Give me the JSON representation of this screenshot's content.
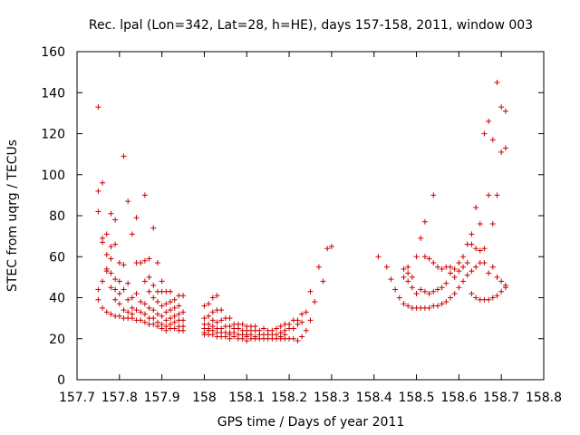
{
  "chart_data": {
    "type": "scatter",
    "title": "Rec. lpal (Lon=342, Lat=28, h=HE), days 157-158, 2011, window 003",
    "xlabel": "GPS time / Days of year 2011",
    "ylabel": "STEC from uqrg / TECUs",
    "xlim": [
      157.7,
      158.8
    ],
    "ylim": [
      0,
      160
    ],
    "xticks": [
      157.7,
      157.8,
      157.9,
      158,
      158.1,
      158.2,
      158.3,
      158.4,
      158.5,
      158.6,
      158.7,
      158.8
    ],
    "xtick_labels": [
      "157.7",
      "157.8",
      "157.9",
      "158",
      "158.1",
      "158.2",
      "158.3",
      "158.4",
      "158.5",
      "158.6",
      "158.7",
      "158.8"
    ],
    "yticks": [
      0,
      20,
      40,
      60,
      80,
      100,
      120,
      140,
      160
    ],
    "ytick_labels": [
      "0",
      "20",
      "40",
      "60",
      "80",
      "100",
      "120",
      "140",
      "160"
    ],
    "grid": false,
    "marker": "plus",
    "color": "#cc0000",
    "series": [
      {
        "points": [
          [
            157.75,
            133
          ],
          [
            157.75,
            92
          ],
          [
            157.75,
            82
          ],
          [
            157.75,
            44
          ],
          [
            157.75,
            39
          ],
          [
            157.76,
            96
          ],
          [
            157.76,
            69
          ],
          [
            157.76,
            67
          ],
          [
            157.76,
            48
          ],
          [
            157.76,
            35
          ],
          [
            157.77,
            71
          ],
          [
            157.77,
            61
          ],
          [
            157.77,
            54
          ],
          [
            157.77,
            53
          ],
          [
            157.77,
            33
          ],
          [
            157.78,
            81
          ],
          [
            157.78,
            65
          ],
          [
            157.78,
            59
          ],
          [
            157.78,
            52
          ],
          [
            157.78,
            45
          ],
          [
            157.78,
            32
          ],
          [
            157.79,
            78
          ],
          [
            157.79,
            66
          ],
          [
            157.79,
            49
          ],
          [
            157.79,
            44
          ],
          [
            157.79,
            39
          ],
          [
            157.79,
            31
          ],
          [
            157.8,
            57
          ],
          [
            157.8,
            48
          ],
          [
            157.8,
            42
          ],
          [
            157.8,
            37
          ],
          [
            157.8,
            31
          ],
          [
            157.81,
            109
          ],
          [
            157.81,
            56
          ],
          [
            157.81,
            44
          ],
          [
            157.81,
            34
          ],
          [
            157.81,
            30
          ],
          [
            157.82,
            87
          ],
          [
            157.82,
            47
          ],
          [
            157.82,
            39
          ],
          [
            157.82,
            33
          ],
          [
            157.82,
            30
          ],
          [
            157.83,
            71
          ],
          [
            157.83,
            40
          ],
          [
            157.83,
            35
          ],
          [
            157.83,
            32
          ],
          [
            157.83,
            30
          ],
          [
            157.84,
            79
          ],
          [
            157.84,
            57
          ],
          [
            157.84,
            42
          ],
          [
            157.84,
            34
          ],
          [
            157.84,
            29
          ],
          [
            157.85,
            57
          ],
          [
            157.85,
            38
          ],
          [
            157.85,
            33
          ],
          [
            157.85,
            29
          ],
          [
            157.86,
            90
          ],
          [
            157.86,
            58
          ],
          [
            157.86,
            48
          ],
          [
            157.86,
            37
          ],
          [
            157.86,
            32
          ],
          [
            157.86,
            28
          ],
          [
            157.87,
            59
          ],
          [
            157.87,
            50
          ],
          [
            157.87,
            43
          ],
          [
            157.87,
            35
          ],
          [
            157.87,
            30
          ],
          [
            157.87,
            27
          ],
          [
            157.88,
            74
          ],
          [
            157.88,
            46
          ],
          [
            157.88,
            40
          ],
          [
            157.88,
            34
          ],
          [
            157.88,
            30
          ],
          [
            157.88,
            27
          ],
          [
            157.89,
            57
          ],
          [
            157.89,
            43
          ],
          [
            157.89,
            38
          ],
          [
            157.89,
            32
          ],
          [
            157.89,
            28
          ],
          [
            157.89,
            26
          ],
          [
            157.9,
            48
          ],
          [
            157.9,
            43
          ],
          [
            157.9,
            36
          ],
          [
            157.9,
            31
          ],
          [
            157.9,
            27
          ],
          [
            157.9,
            25
          ],
          [
            157.91,
            43
          ],
          [
            157.91,
            37
          ],
          [
            157.91,
            33
          ],
          [
            157.91,
            29
          ],
          [
            157.91,
            26
          ],
          [
            157.91,
            24
          ],
          [
            157.92,
            43
          ],
          [
            157.92,
            38
          ],
          [
            157.92,
            34
          ],
          [
            157.92,
            30
          ],
          [
            157.92,
            27
          ],
          [
            157.92,
            25
          ],
          [
            157.93,
            39
          ],
          [
            157.93,
            35
          ],
          [
            157.93,
            31
          ],
          [
            157.93,
            28
          ],
          [
            157.93,
            25
          ],
          [
            157.94,
            41
          ],
          [
            157.94,
            36
          ],
          [
            157.94,
            32
          ],
          [
            157.94,
            29
          ],
          [
            157.94,
            26
          ],
          [
            157.94,
            24
          ],
          [
            157.95,
            41
          ],
          [
            157.95,
            33
          ],
          [
            157.95,
            29
          ],
          [
            157.95,
            26
          ],
          [
            157.95,
            24
          ],
          [
            158.0,
            36
          ],
          [
            158.0,
            30
          ],
          [
            158.0,
            27
          ],
          [
            158.0,
            25
          ],
          [
            158.0,
            23
          ],
          [
            158.0,
            22
          ],
          [
            158.01,
            37
          ],
          [
            158.01,
            31
          ],
          [
            158.01,
            27
          ],
          [
            158.01,
            25
          ],
          [
            158.01,
            24
          ],
          [
            158.01,
            22
          ],
          [
            158.02,
            40
          ],
          [
            158.02,
            33
          ],
          [
            158.02,
            29
          ],
          [
            158.02,
            26
          ],
          [
            158.02,
            24
          ],
          [
            158.02,
            22
          ],
          [
            158.03,
            41
          ],
          [
            158.03,
            34
          ],
          [
            158.03,
            28
          ],
          [
            158.03,
            25
          ],
          [
            158.03,
            23
          ],
          [
            158.03,
            21
          ],
          [
            158.04,
            34
          ],
          [
            158.04,
            29
          ],
          [
            158.04,
            25
          ],
          [
            158.04,
            23
          ],
          [
            158.04,
            21
          ],
          [
            158.05,
            30
          ],
          [
            158.05,
            26
          ],
          [
            158.05,
            23
          ],
          [
            158.05,
            21
          ],
          [
            158.06,
            30
          ],
          [
            158.06,
            26
          ],
          [
            158.06,
            23
          ],
          [
            158.06,
            22
          ],
          [
            158.06,
            20
          ],
          [
            158.07,
            27
          ],
          [
            158.07,
            25
          ],
          [
            158.07,
            23
          ],
          [
            158.07,
            21
          ],
          [
            158.08,
            27
          ],
          [
            158.08,
            25
          ],
          [
            158.08,
            22
          ],
          [
            158.08,
            20
          ],
          [
            158.09,
            27
          ],
          [
            158.09,
            24
          ],
          [
            158.09,
            22
          ],
          [
            158.09,
            20
          ],
          [
            158.1,
            26
          ],
          [
            158.1,
            24
          ],
          [
            158.1,
            22
          ],
          [
            158.1,
            21
          ],
          [
            158.1,
            19
          ],
          [
            158.11,
            26
          ],
          [
            158.11,
            24
          ],
          [
            158.11,
            22
          ],
          [
            158.11,
            20
          ],
          [
            158.12,
            26
          ],
          [
            158.12,
            24
          ],
          [
            158.12,
            21
          ],
          [
            158.12,
            20
          ],
          [
            158.13,
            24
          ],
          [
            158.13,
            22
          ],
          [
            158.13,
            20
          ],
          [
            158.14,
            25
          ],
          [
            158.14,
            22
          ],
          [
            158.14,
            20
          ],
          [
            158.15,
            24
          ],
          [
            158.15,
            22
          ],
          [
            158.15,
            20
          ],
          [
            158.16,
            24
          ],
          [
            158.16,
            22
          ],
          [
            158.16,
            20
          ],
          [
            158.17,
            25
          ],
          [
            158.17,
            22
          ],
          [
            158.17,
            20
          ],
          [
            158.18,
            26
          ],
          [
            158.18,
            23
          ],
          [
            158.18,
            21
          ],
          [
            158.18,
            20
          ],
          [
            158.19,
            27
          ],
          [
            158.19,
            24
          ],
          [
            158.19,
            22
          ],
          [
            158.19,
            20
          ],
          [
            158.2,
            27
          ],
          [
            158.2,
            25
          ],
          [
            158.2,
            20
          ],
          [
            158.21,
            29
          ],
          [
            158.21,
            25
          ],
          [
            158.21,
            20
          ],
          [
            158.22,
            29
          ],
          [
            158.22,
            27
          ],
          [
            158.22,
            19
          ],
          [
            158.23,
            32
          ],
          [
            158.23,
            28
          ],
          [
            158.23,
            21
          ],
          [
            158.24,
            33
          ],
          [
            158.24,
            24
          ],
          [
            158.25,
            43
          ],
          [
            158.25,
            29
          ],
          [
            158.26,
            38
          ],
          [
            158.27,
            55
          ],
          [
            158.28,
            48
          ],
          [
            158.29,
            64
          ],
          [
            158.3,
            65
          ],
          [
            158.41,
            60
          ],
          [
            158.43,
            55
          ],
          [
            158.44,
            49
          ],
          [
            158.45,
            44
          ],
          [
            158.46,
            40
          ],
          [
            158.47,
            54
          ],
          [
            158.47,
            50
          ],
          [
            158.47,
            37
          ],
          [
            158.48,
            55
          ],
          [
            158.48,
            52
          ],
          [
            158.48,
            48
          ],
          [
            158.48,
            36
          ],
          [
            158.49,
            50
          ],
          [
            158.49,
            45
          ],
          [
            158.49,
            35
          ],
          [
            158.5,
            60
          ],
          [
            158.5,
            42
          ],
          [
            158.5,
            35
          ],
          [
            158.51,
            69
          ],
          [
            158.51,
            44
          ],
          [
            158.51,
            35
          ],
          [
            158.52,
            77
          ],
          [
            158.52,
            60
          ],
          [
            158.52,
            43
          ],
          [
            158.52,
            35
          ],
          [
            158.53,
            59
          ],
          [
            158.53,
            42
          ],
          [
            158.53,
            35
          ],
          [
            158.54,
            90
          ],
          [
            158.54,
            57
          ],
          [
            158.54,
            43
          ],
          [
            158.54,
            36
          ],
          [
            158.55,
            55
          ],
          [
            158.55,
            44
          ],
          [
            158.55,
            36
          ],
          [
            158.56,
            54
          ],
          [
            158.56,
            45
          ],
          [
            158.56,
            37
          ],
          [
            158.57,
            55
          ],
          [
            158.57,
            47
          ],
          [
            158.57,
            38
          ],
          [
            158.58,
            55
          ],
          [
            158.58,
            52
          ],
          [
            158.58,
            40
          ],
          [
            158.59,
            54
          ],
          [
            158.59,
            50
          ],
          [
            158.59,
            42
          ],
          [
            158.6,
            57
          ],
          [
            158.6,
            53
          ],
          [
            158.6,
            45
          ],
          [
            158.61,
            60
          ],
          [
            158.61,
            55
          ],
          [
            158.61,
            48
          ],
          [
            158.62,
            66
          ],
          [
            158.62,
            57
          ],
          [
            158.62,
            51
          ],
          [
            158.63,
            71
          ],
          [
            158.63,
            66
          ],
          [
            158.63,
            53
          ],
          [
            158.63,
            42
          ],
          [
            158.64,
            84
          ],
          [
            158.64,
            64
          ],
          [
            158.64,
            55
          ],
          [
            158.64,
            40
          ],
          [
            158.65,
            76
          ],
          [
            158.65,
            63
          ],
          [
            158.65,
            57
          ],
          [
            158.65,
            39
          ],
          [
            158.66,
            120
          ],
          [
            158.66,
            64
          ],
          [
            158.66,
            57
          ],
          [
            158.66,
            39
          ],
          [
            158.67,
            126
          ],
          [
            158.67,
            90
          ],
          [
            158.67,
            52
          ],
          [
            158.67,
            39
          ],
          [
            158.68,
            117
          ],
          [
            158.68,
            76
          ],
          [
            158.68,
            55
          ],
          [
            158.68,
            40
          ],
          [
            158.69,
            145
          ],
          [
            158.69,
            90
          ],
          [
            158.69,
            50
          ],
          [
            158.69,
            41
          ],
          [
            158.7,
            133
          ],
          [
            158.7,
            111
          ],
          [
            158.7,
            48
          ],
          [
            158.7,
            43
          ],
          [
            158.71,
            131
          ],
          [
            158.71,
            113
          ],
          [
            158.71,
            46
          ],
          [
            158.71,
            45
          ]
        ]
      }
    ]
  }
}
